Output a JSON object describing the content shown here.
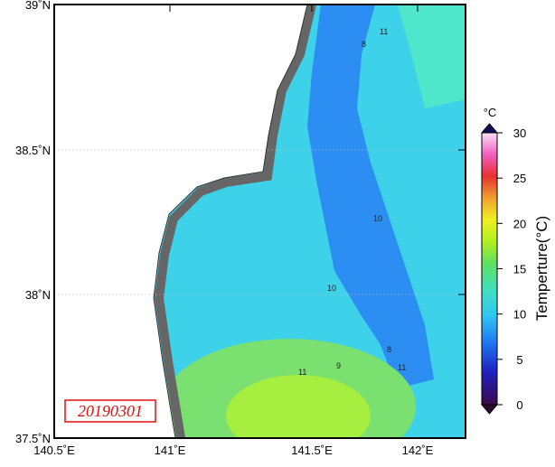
{
  "map": {
    "date_label": "20190301",
    "lat_ticks": [
      "39˚N",
      "38.5˚N",
      "38˚N",
      "37.5˚N"
    ],
    "lon_ticks": [
      "140.5˚E",
      "141˚E",
      "141.5˚E",
      "142˚E"
    ],
    "contour_labels": [
      "8",
      "11",
      "10",
      "10",
      "8",
      "11",
      "9",
      "11"
    ]
  },
  "colorbar": {
    "unit": "°C",
    "title": "Temperture(°C)",
    "range": [
      0,
      30
    ],
    "ticks": [
      0,
      5,
      10,
      15,
      20,
      25,
      30
    ]
  }
}
